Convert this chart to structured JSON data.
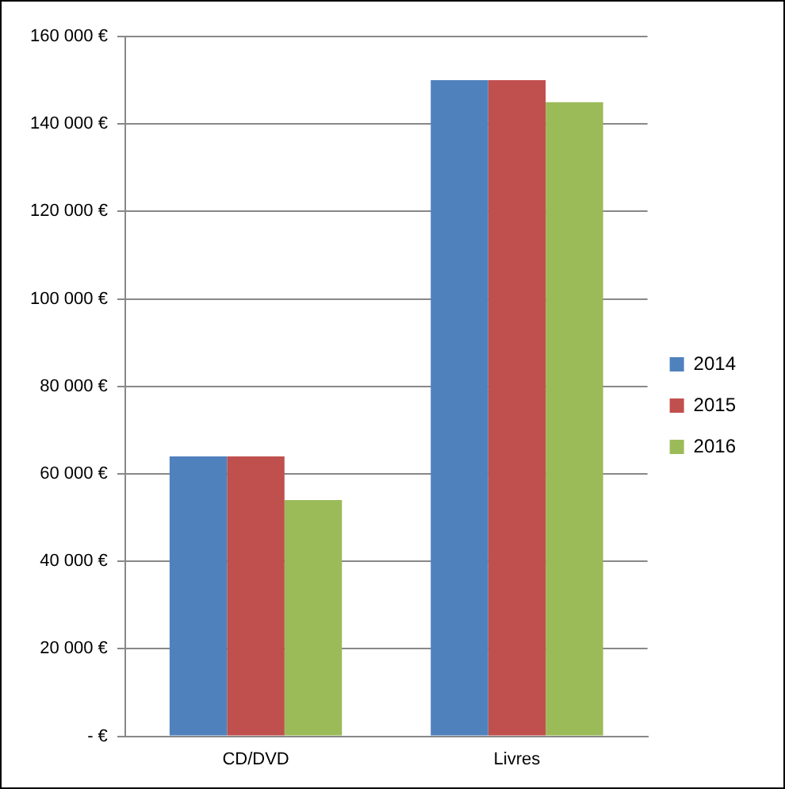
{
  "chart_data": {
    "type": "bar",
    "categories": [
      "CD/DVD",
      "Livres"
    ],
    "series": [
      {
        "name": "2014",
        "color": "#4f81bd",
        "values": [
          64000,
          150000
        ]
      },
      {
        "name": "2015",
        "color": "#c0504d",
        "values": [
          64000,
          150000
        ]
      },
      {
        "name": "2016",
        "color": "#9bbb59",
        "values": [
          54000,
          145000
        ]
      }
    ],
    "ylim": [
      0,
      160000
    ],
    "yticks": [
      {
        "value": 0,
        "label": "- €"
      },
      {
        "value": 20000,
        "label": "20 000 €"
      },
      {
        "value": 40000,
        "label": "40 000 €"
      },
      {
        "value": 60000,
        "label": "60 000 €"
      },
      {
        "value": 80000,
        "label": "80 000 €"
      },
      {
        "value": 100000,
        "label": "100 000 €"
      },
      {
        "value": 120000,
        "label": "120 000 €"
      },
      {
        "value": 140000,
        "label": "140 000 €"
      },
      {
        "value": 160000,
        "label": "160 000 €"
      }
    ],
    "grid": "y",
    "legend": "right"
  }
}
